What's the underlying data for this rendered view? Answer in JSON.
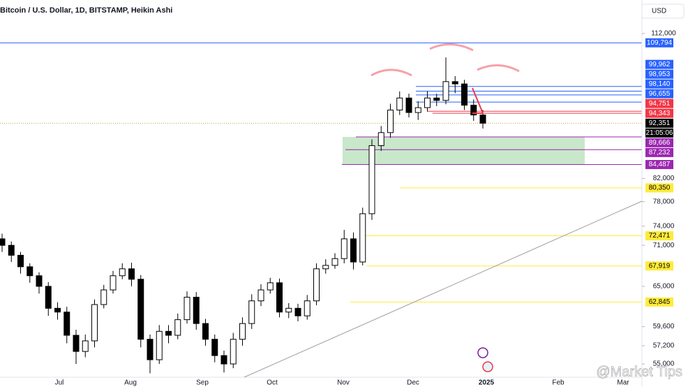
{
  "chart_data": {
    "type": "candlestick",
    "title": "Bitcoin / U.S. Dollar, 1D, BITSTAMP, Heikin Ashi",
    "currency": "USD",
    "countdown": "21:05:06",
    "watermark": "@Market Tips",
    "log_scale": true,
    "up_color": "#ffffff",
    "down_color": "#000000",
    "xlabels": [
      "Jul",
      "Aug",
      "Sep",
      "Oct",
      "Nov",
      "Dec",
      "2025",
      "Feb",
      "Mar"
    ],
    "ylim": [
      53450,
      120400
    ],
    "yticks": [
      {
        "value": 112000,
        "label": "112,000"
      },
      {
        "value": 82000,
        "label": "82,000"
      },
      {
        "value": 78000,
        "label": "78,000"
      },
      {
        "value": 74000,
        "label": "74,000"
      },
      {
        "value": 71000,
        "label": "71,000"
      },
      {
        "value": 65000,
        "label": "65,000"
      },
      {
        "value": 59600,
        "label": "59,600"
      },
      {
        "value": 57200,
        "label": "57,200"
      },
      {
        "value": 55000,
        "label": "55,000"
      }
    ],
    "open": [
      72000,
      71000,
      69500,
      67800,
      66500,
      65000,
      62000,
      61500,
      58500,
      56500,
      57800,
      62500,
      64500,
      66500,
      67500,
      66000,
      58000,
      55500,
      59000,
      58500,
      60500,
      63500,
      60000,
      58000,
      56000,
      55000,
      58000,
      60000,
      63000,
      64500,
      65500,
      61500,
      62000,
      61000,
      63000,
      67500,
      68000,
      69000,
      72000,
      68500,
      76000,
      88000,
      90500,
      95000,
      97500,
      94500,
      95500,
      97500,
      97000,
      101000,
      100500,
      96000,
      94000
    ],
    "high": [
      72800,
      71600,
      70000,
      68300,
      67000,
      65600,
      62800,
      62200,
      59200,
      58600,
      63200,
      65200,
      67200,
      68300,
      68400,
      66600,
      58600,
      59800,
      59800,
      61300,
      64300,
      64200,
      60600,
      58600,
      56600,
      58800,
      60800,
      63900,
      65300,
      66200,
      66100,
      62700,
      62600,
      63800,
      68300,
      68900,
      69800,
      73400,
      73000,
      77000,
      89200,
      91800,
      96300,
      98900,
      98400,
      96800,
      98900,
      98400,
      106400,
      102200,
      101400,
      97200,
      95000
    ],
    "low": [
      70000,
      68500,
      66800,
      65500,
      64000,
      61000,
      60500,
      57500,
      55000,
      55800,
      57000,
      62000,
      64000,
      66000,
      65000,
      57000,
      53900,
      55000,
      57500,
      58000,
      60000,
      59200,
      57200,
      55200,
      54000,
      54500,
      57200,
      59300,
      62300,
      64000,
      60800,
      60700,
      60300,
      60500,
      62400,
      66800,
      67500,
      68300,
      67400,
      68000,
      75000,
      87000,
      89500,
      94000,
      93500,
      93000,
      94700,
      95800,
      96200,
      98500,
      95000,
      92800,
      91300
    ],
    "close": [
      71000,
      69500,
      67800,
      66500,
      65000,
      62000,
      61500,
      58500,
      56500,
      57800,
      62500,
      64500,
      66500,
      67500,
      66000,
      58000,
      55500,
      59000,
      58500,
      60500,
      63500,
      60000,
      58000,
      56000,
      55000,
      58000,
      60000,
      63000,
      64500,
      65500,
      61500,
      62000,
      61000,
      63000,
      67500,
      68000,
      69000,
      72000,
      68500,
      76000,
      88000,
      90500,
      95000,
      97500,
      94500,
      95500,
      97500,
      97000,
      101000,
      100500,
      96000,
      94000,
      92351
    ],
    "last_price": {
      "value": 92351,
      "label": "92,351"
    },
    "levels": [
      {
        "value": 109794,
        "label": "109,794",
        "color": "#2962ff",
        "text_color": "#ffffff"
      },
      {
        "value": 99962,
        "label": "99,962",
        "color": "#2962ff",
        "text_color": "#ffffff"
      },
      {
        "value": 98953,
        "label": "98,953",
        "color": "#2962ff",
        "text_color": "#ffffff"
      },
      {
        "value": 98140,
        "label": "98,140",
        "color": "#2962ff",
        "text_color": "#ffffff"
      },
      {
        "value": 96655,
        "label": "96,655",
        "color": "#2962ff",
        "text_color": "#ffffff"
      },
      {
        "value": 94751,
        "label": "94,751",
        "color": "#f23645",
        "text_color": "#ffffff"
      },
      {
        "value": 94343,
        "label": "94,343",
        "color": "#f23645",
        "text_color": "#ffffff"
      },
      {
        "value": 89666,
        "label": "89,666",
        "color": "#9c27b0",
        "text_color": "#ffffff"
      },
      {
        "value": 87232,
        "label": "87,232",
        "color": "#9c27b0",
        "text_color": "#ffffff"
      },
      {
        "value": 84487,
        "label": "84,487",
        "color": "#9c27b0",
        "text_color": "#ffffff"
      },
      {
        "value": 80350,
        "label": "80,350",
        "color": "#ffeb3b",
        "text_color": "#000000"
      },
      {
        "value": 72471,
        "label": "72,471",
        "color": "#ffeb3b",
        "text_color": "#000000"
      },
      {
        "value": 67919,
        "label": "67,919",
        "color": "#ffeb3b",
        "text_color": "#000000"
      },
      {
        "value": 62845,
        "label": "62,845",
        "color": "#ffeb3b",
        "text_color": "#000000"
      }
    ]
  }
}
